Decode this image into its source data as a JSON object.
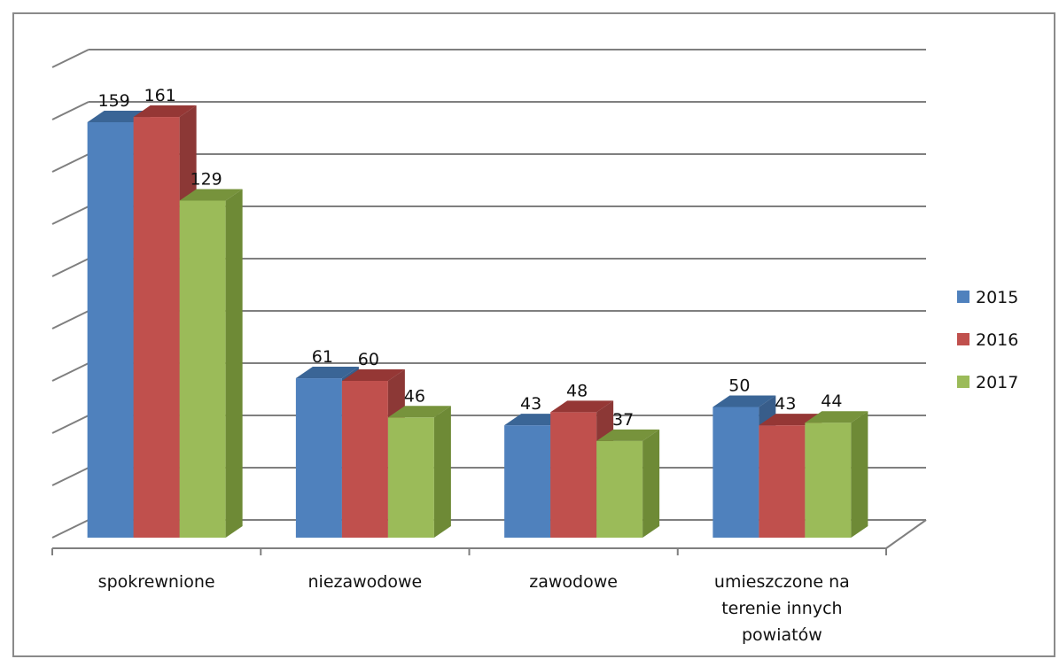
{
  "chart_data": {
    "type": "bar",
    "categories": [
      [
        "spokrewnione"
      ],
      [
        "niezawodowe"
      ],
      [
        "zawodowe"
      ],
      [
        "umieszczone na",
        "terenie innych",
        "powiatów"
      ]
    ],
    "series": [
      {
        "name": "2015",
        "values": [
          159,
          61,
          43,
          50
        ],
        "color": "#4F81BD",
        "top": "#3A6596",
        "side": "#385D8A"
      },
      {
        "name": "2016",
        "values": [
          161,
          60,
          48,
          43
        ],
        "color": "#C0504D",
        "top": "#953735",
        "side": "#8C3836"
      },
      {
        "name": "2017",
        "values": [
          129,
          46,
          37,
          44
        ],
        "color": "#9BBB59",
        "top": "#77933C",
        "side": "#6E8A36"
      }
    ],
    "ylim": [
      0,
      180
    ],
    "grid": true,
    "legend": "right",
    "three_d": true
  }
}
